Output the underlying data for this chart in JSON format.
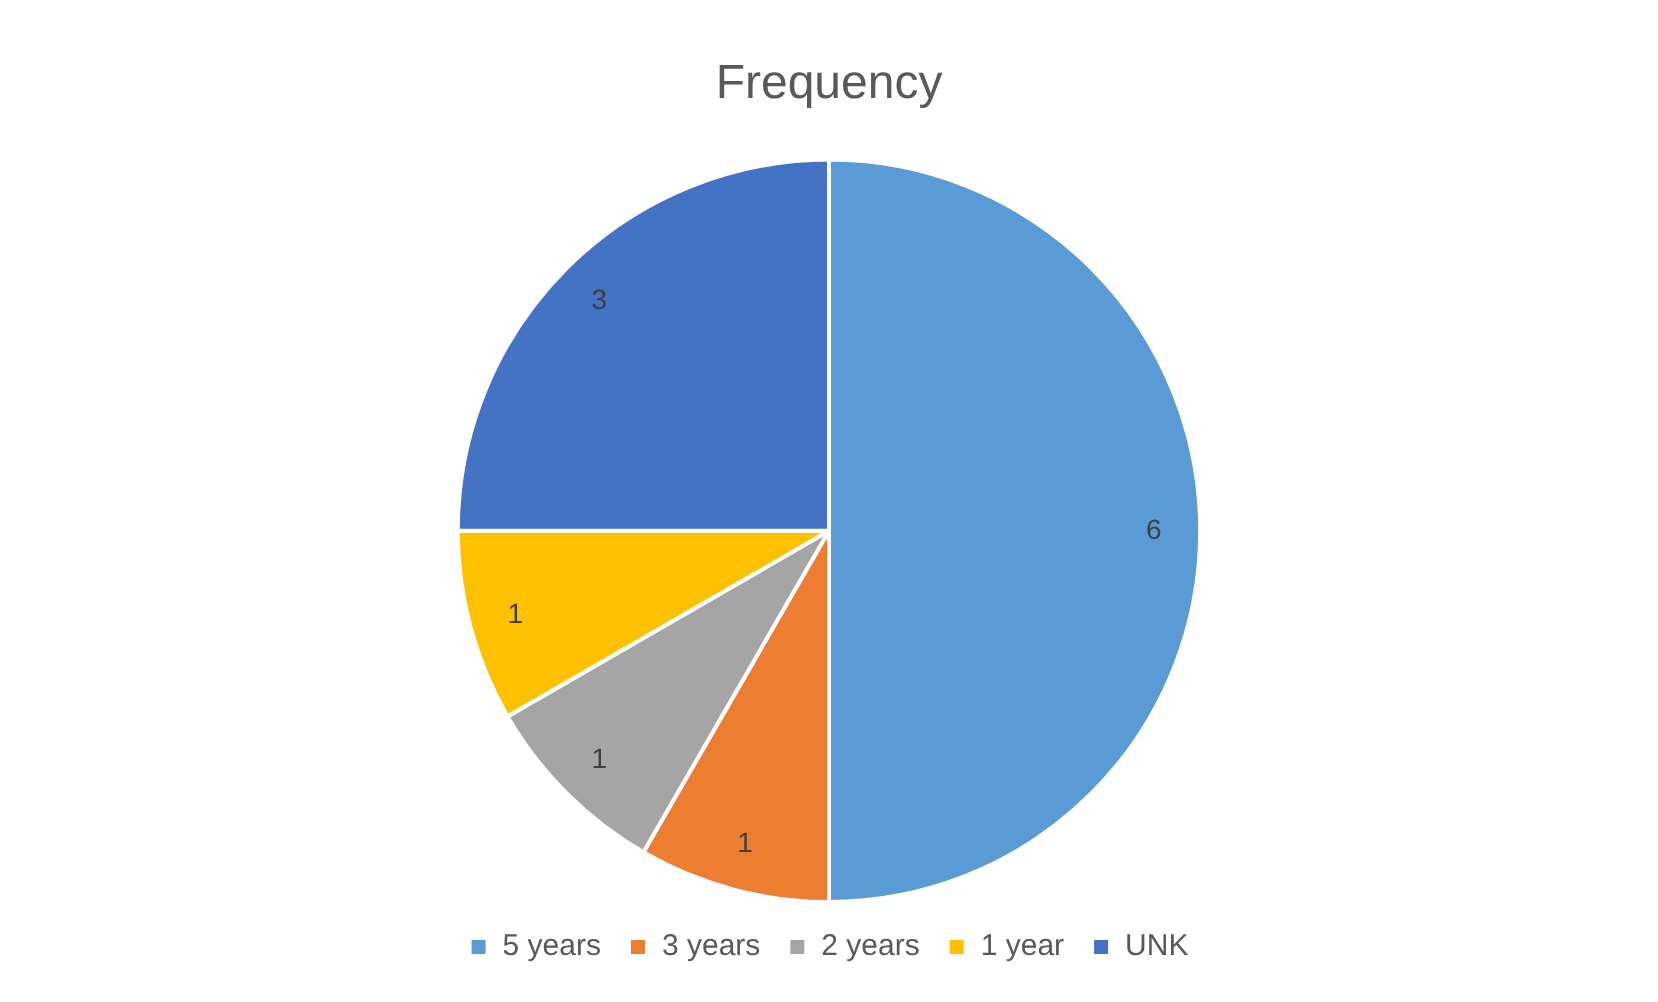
{
  "chart_data": {
    "type": "pie",
    "title": "Frequency",
    "categories": [
      "5 years",
      "3 years",
      "2 years",
      "1 year",
      "UNK"
    ],
    "values": [
      6,
      1,
      1,
      1,
      3
    ],
    "colors": [
      "#5b9bd5",
      "#ed7d31",
      "#a5a5a5",
      "#ffc000",
      "#4472c4"
    ],
    "data_labels": true,
    "legend": "bottom"
  }
}
